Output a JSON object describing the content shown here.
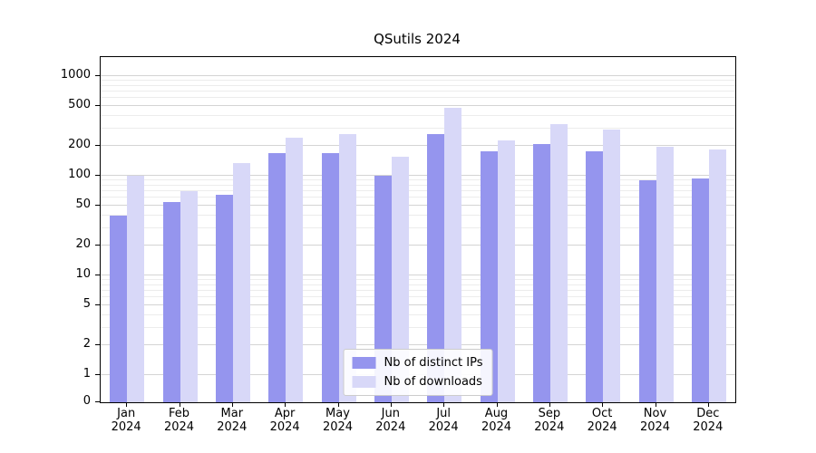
{
  "chart_data": {
    "type": "bar",
    "title": "QSutils 2024",
    "yscale": "symlog",
    "ylim": [
      0,
      1500
    ],
    "grid": true,
    "legend_position": "lower center",
    "yticks": [
      1000,
      500,
      200,
      100,
      50,
      20,
      10,
      5,
      2,
      1,
      0
    ],
    "minor_yticks": [
      3,
      4,
      6,
      7,
      8,
      9,
      30,
      40,
      60,
      70,
      80,
      90,
      300,
      400,
      600,
      700,
      800,
      900
    ],
    "categories": [
      "Jan",
      "Feb",
      "Mar",
      "Apr",
      "May",
      "Jun",
      "Jul",
      "Aug",
      "Sep",
      "Oct",
      "Nov",
      "Dec"
    ],
    "year_label": "2024",
    "series": [
      {
        "name": "Nb of distinct IPs",
        "color": "#9595ee",
        "values": [
          40,
          55,
          65,
          170,
          170,
          100,
          260,
          175,
          210,
          175,
          90,
          95
        ]
      },
      {
        "name": "Nb of downloads",
        "color": "#d8d8f8",
        "values": [
          100,
          70,
          135,
          240,
          260,
          155,
          480,
          225,
          330,
          290,
          195,
          185
        ]
      }
    ]
  }
}
